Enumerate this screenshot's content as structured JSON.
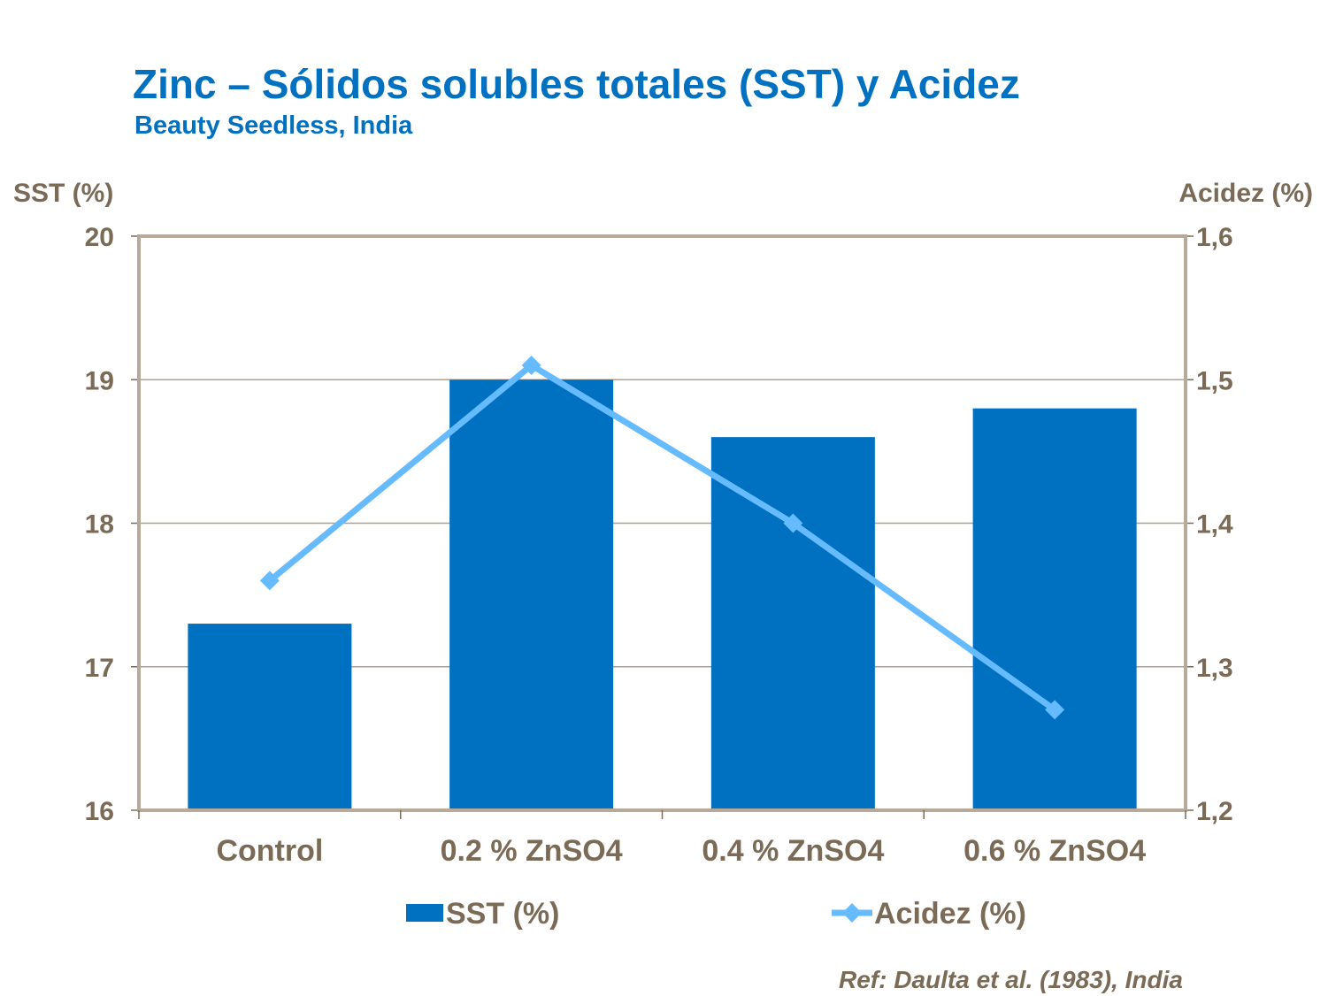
{
  "chart_data": {
    "type": "bar+line",
    "title": "Zinc – Sólidos solubles totales (SST) y Acidez",
    "subtitle": "Beauty Seedless, India",
    "categories": [
      "Control",
      "0.2 % ZnSO4",
      "0.4 % ZnSO4",
      "0.6 % ZnSO4"
    ],
    "series": [
      {
        "name": "SST (%)",
        "type": "bar",
        "axis": "left",
        "values": [
          17.3,
          19.0,
          18.6,
          18.8
        ],
        "color": "#0070C0"
      },
      {
        "name": "Acidez (%)",
        "type": "line",
        "axis": "right",
        "marker": "diamond",
        "values": [
          1.36,
          1.51,
          1.4,
          1.27
        ],
        "color": "#66BBFF"
      }
    ],
    "y_left": {
      "label": "SST (%)",
      "ylim": [
        16,
        20
      ],
      "ticks": [
        "16",
        "17",
        "18",
        "19",
        "20"
      ]
    },
    "y_right": {
      "label": "Acidez (%)",
      "ylim": [
        1.2,
        1.6
      ],
      "ticks": [
        "1,2",
        "1,3",
        "1,4",
        "1,5",
        "1,6"
      ]
    },
    "grid": true,
    "legend": "bottom",
    "reference": "Ref: Daulta et al. (1983), India"
  }
}
